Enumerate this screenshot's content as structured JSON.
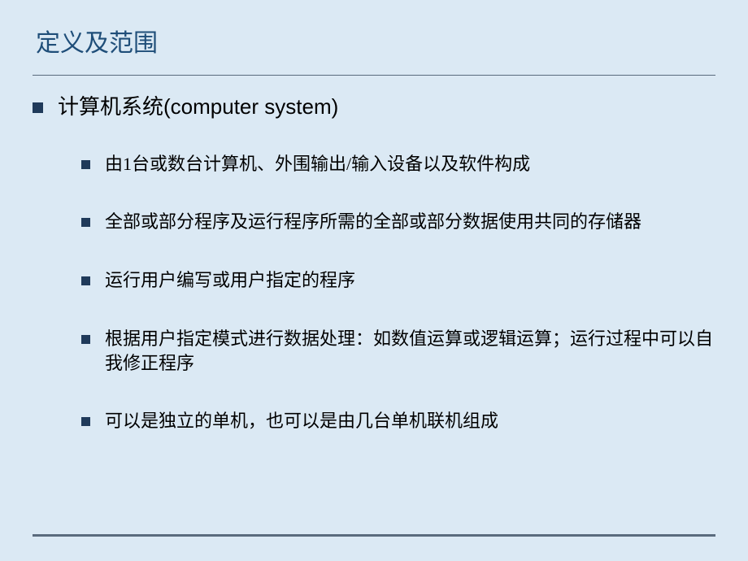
{
  "slide": {
    "title": "定义及范围",
    "main_item": "计算机系统(computer system)",
    "sub_items": [
      "由1台或数台计算机、外围输出/输入设备以及软件构成",
      "全部或部分程序及运行程序所需的全部或部分数据使用共同的存储器",
      "运行用户编写或用户指定的程序",
      "根据用户指定模式进行数据处理：如数值运算或逻辑运算；运行过程中可以自我修正程序",
      "可以是独立的单机，也可以是由几台单机联机组成"
    ],
    "colors": {
      "background": "#dbe9f4",
      "title_color": "#1f4e79",
      "bullet_color": "#1f3a5a",
      "divider_color": "#5a6b7d",
      "text_color": "#000000"
    },
    "typography": {
      "title_fontsize": 30,
      "main_fontsize": 26,
      "sub_fontsize": 22
    }
  }
}
